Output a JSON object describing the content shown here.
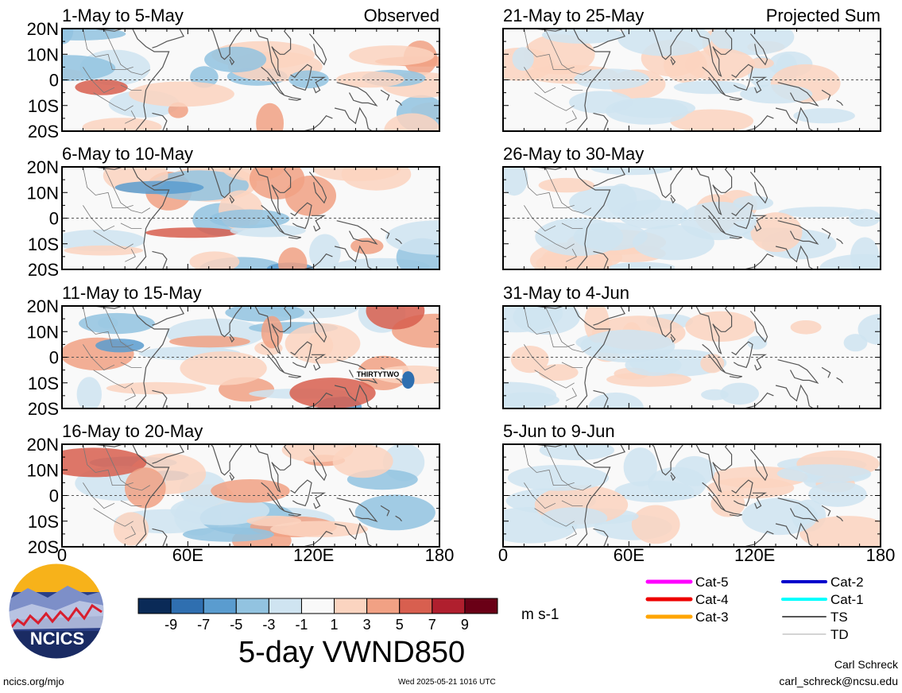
{
  "chart_data": {
    "type": "heatmap",
    "variable": "5-day VWND850",
    "units": "m s-1",
    "colorbar": {
      "ticks": [
        "-9",
        "-7",
        "-5",
        "-3",
        "-1",
        "1",
        "3",
        "5",
        "7",
        "9"
      ],
      "colors": [
        "#0a2a57",
        "#2f6fb0",
        "#5a9ccf",
        "#92c3e0",
        "#cfe4f1",
        "#f9f9f9",
        "#fbd4c0",
        "#f1a184",
        "#d85f4f",
        "#b01f2e",
        "#6a0016"
      ]
    },
    "panels": [
      {
        "title": "1-May to 5-May",
        "tag": "Observed",
        "col": 0,
        "row": 0
      },
      {
        "title": "6-May to 10-May",
        "tag": "",
        "col": 0,
        "row": 1
      },
      {
        "title": "11-May to 15-May",
        "tag": "",
        "col": 0,
        "row": 2,
        "storm_label": "THIRTYTWO"
      },
      {
        "title": "16-May to 20-May",
        "tag": "",
        "col": 0,
        "row": 3
      },
      {
        "title": "21-May to 25-May",
        "tag": "Projected Sum",
        "col": 1,
        "row": 0
      },
      {
        "title": "26-May to 30-May",
        "tag": "",
        "col": 1,
        "row": 1
      },
      {
        "title": "31-May to 4-Jun",
        "tag": "",
        "col": 1,
        "row": 2
      },
      {
        "title": "5-Jun to 9-Jun",
        "tag": "",
        "col": 1,
        "row": 3
      }
    ],
    "y_ticks": [
      "20N",
      "10N",
      "0",
      "10S",
      "20S"
    ],
    "x_ticks": [
      "0",
      "60E",
      "120E",
      "180"
    ],
    "xlim": [
      0,
      180
    ],
    "ylim": [
      -20,
      20
    ],
    "legend": [
      {
        "label": "Cat-5",
        "color": "#ff00ff",
        "width": 5
      },
      {
        "label": "Cat-4",
        "color": "#ee0000",
        "width": 5
      },
      {
        "label": "Cat-3",
        "color": "#ffa500",
        "width": 5
      },
      {
        "label": "Cat-2",
        "color": "#0000cc",
        "width": 4
      },
      {
        "label": "Cat-1",
        "color": "#00ffff",
        "width": 4
      },
      {
        "label": "TS",
        "color": "#555555",
        "width": 2
      },
      {
        "label": "TD",
        "color": "#aaaaaa",
        "width": 1
      }
    ]
  },
  "logo": {
    "text": "NCICS"
  },
  "footer": {
    "left": "ncics.org/mjo",
    "center": "Wed 2025-05-21 1016 UTC",
    "author": "Carl Schreck",
    "email": "carl_schreck@ncsu.edu"
  }
}
